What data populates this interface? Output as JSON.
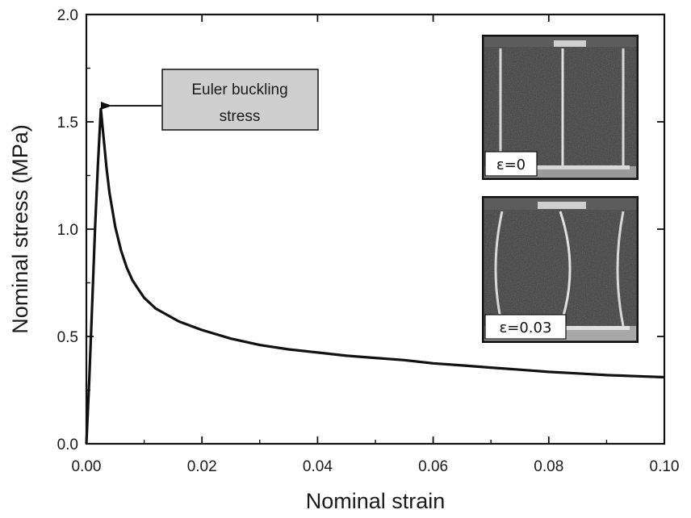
{
  "chart_data": {
    "type": "line",
    "xlabel": "Nominal strain",
    "ylabel": "Nominal stress (MPa)",
    "xlim": [
      0,
      0.1
    ],
    "ylim": [
      0,
      2.0
    ],
    "xticks": [
      "0.00",
      "0.02",
      "0.04",
      "0.06",
      "0.08",
      "0.10"
    ],
    "yticks": [
      "0.0",
      "0.5",
      "1.0",
      "1.5",
      "2.0"
    ],
    "grid": false,
    "series": [
      {
        "x": [
          0,
          0.0005,
          0.001,
          0.0015,
          0.002,
          0.0025,
          0.003,
          0.0035,
          0.004,
          0.005,
          0.006,
          0.007,
          0.008,
          0.009,
          0.01,
          0.012,
          0.014,
          0.016,
          0.018,
          0.02,
          0.025,
          0.03,
          0.035,
          0.04,
          0.045,
          0.05,
          0.055,
          0.06,
          0.065,
          0.07,
          0.075,
          0.08,
          0.085,
          0.09,
          0.095,
          0.1
        ],
        "y": [
          0,
          0.3,
          0.65,
          1.0,
          1.3,
          1.56,
          1.42,
          1.28,
          1.17,
          1.01,
          0.9,
          0.82,
          0.76,
          0.72,
          0.68,
          0.63,
          0.6,
          0.57,
          0.55,
          0.53,
          0.49,
          0.46,
          0.44,
          0.425,
          0.41,
          0.4,
          0.39,
          0.375,
          0.365,
          0.355,
          0.345,
          0.335,
          0.328,
          0.32,
          0.315,
          0.31
        ]
      }
    ],
    "annotations": [
      {
        "text_lines": [
          "Euler buckling",
          "stress"
        ],
        "x": 0.0025,
        "y": 1.56
      }
    ],
    "insets": [
      {
        "label": "ε=0",
        "strain": 0
      },
      {
        "label": "ε=0.03",
        "strain": 0.03
      }
    ]
  }
}
